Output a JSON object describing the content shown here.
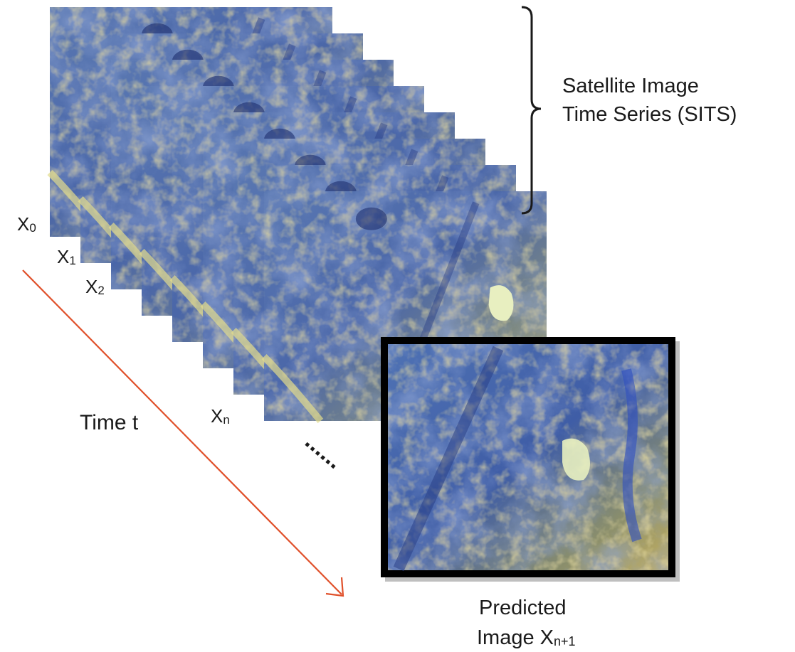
{
  "stack": {
    "labels": [
      {
        "base": "X",
        "sub": "0"
      },
      {
        "base": "X",
        "sub": "1"
      },
      {
        "base": "X",
        "sub": "2"
      },
      {
        "base": "X",
        "sub": "n"
      }
    ]
  },
  "bracket_label": {
    "line1": "Satellite Image",
    "line2": "Time Series (SITS)"
  },
  "time_axis": {
    "label": "Time t",
    "arrow_color": "#e0502a"
  },
  "continuation": "......",
  "prediction": {
    "line1": "Predicted",
    "line2_prefix": "Image ",
    "line2_base": "X",
    "line2_sub": "n+1",
    "frame_color": "#000000"
  },
  "colors": {
    "terrain_blue": "#3b5fa8",
    "terrain_yellow": "#c8b45a",
    "terrain_pale": "#e8efc0"
  }
}
